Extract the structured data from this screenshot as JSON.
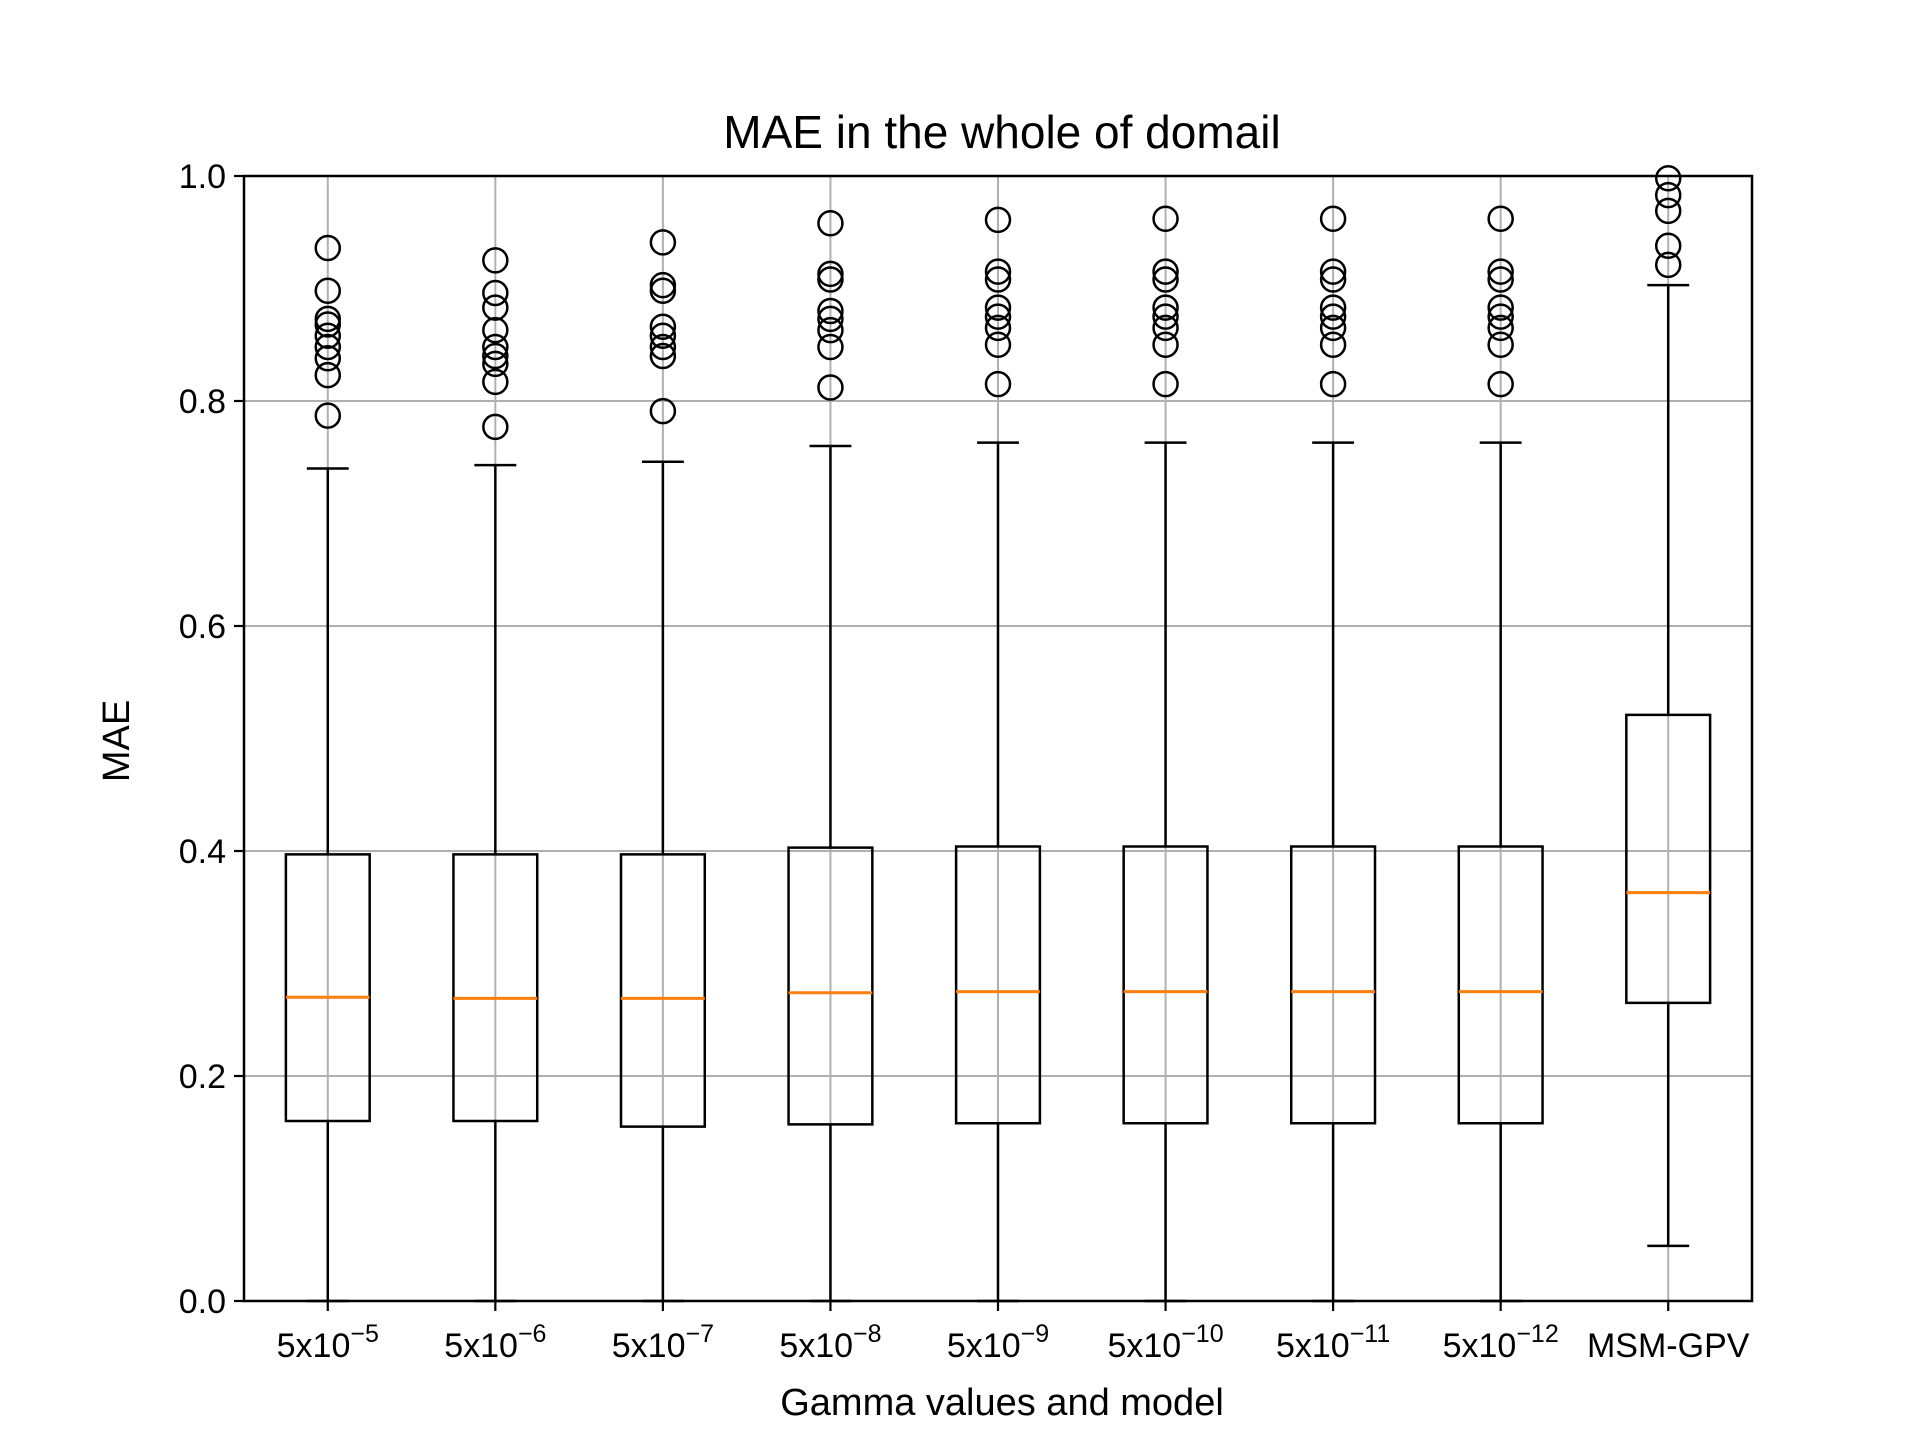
{
  "chart_data": {
    "type": "boxplot",
    "title": "MAE in the whole of domail",
    "xlabel": "Gamma values and model",
    "ylabel": "MAE",
    "ylim": [
      0.0,
      1.0
    ],
    "yticks": [
      "0.0",
      "0.2",
      "0.4",
      "0.6",
      "0.8",
      "1.0"
    ],
    "grid": true,
    "categories": [
      {
        "base": "5x10",
        "exp": "−5"
      },
      {
        "base": "5x10",
        "exp": "−6"
      },
      {
        "base": "5x10",
        "exp": "−7"
      },
      {
        "base": "5x10",
        "exp": "−8"
      },
      {
        "base": "5x10",
        "exp": "−9"
      },
      {
        "base": "5x10",
        "exp": "−10"
      },
      {
        "base": "5x10",
        "exp": "−11"
      },
      {
        "base": "5x10",
        "exp": "−12"
      },
      {
        "base": "MSM-GPV",
        "exp": ""
      }
    ],
    "boxes": [
      {
        "whislo": 0.0,
        "q1": 0.16,
        "med": 0.27,
        "q3": 0.397,
        "whishi": 0.74,
        "fliers": [
          0.787,
          0.823,
          0.838,
          0.848,
          0.858,
          0.868,
          0.873,
          0.898,
          0.936
        ]
      },
      {
        "whislo": 0.0,
        "q1": 0.16,
        "med": 0.269,
        "q3": 0.397,
        "whishi": 0.743,
        "fliers": [
          0.777,
          0.817,
          0.833,
          0.84,
          0.848,
          0.863,
          0.883,
          0.896,
          0.925
        ]
      },
      {
        "whislo": 0.0,
        "q1": 0.155,
        "med": 0.269,
        "q3": 0.397,
        "whishi": 0.746,
        "fliers": [
          0.791,
          0.84,
          0.848,
          0.858,
          0.866,
          0.898,
          0.903,
          0.941
        ]
      },
      {
        "whislo": 0.0,
        "q1": 0.157,
        "med": 0.274,
        "q3": 0.403,
        "whishi": 0.76,
        "fliers": [
          0.812,
          0.848,
          0.863,
          0.873,
          0.88,
          0.908,
          0.913,
          0.958
        ]
      },
      {
        "whislo": 0.0,
        "q1": 0.158,
        "med": 0.275,
        "q3": 0.404,
        "whishi": 0.763,
        "fliers": [
          0.815,
          0.85,
          0.865,
          0.875,
          0.883,
          0.908,
          0.915,
          0.961
        ]
      },
      {
        "whislo": 0.0,
        "q1": 0.158,
        "med": 0.275,
        "q3": 0.404,
        "whishi": 0.763,
        "fliers": [
          0.815,
          0.85,
          0.865,
          0.875,
          0.883,
          0.908,
          0.915,
          0.962
        ]
      },
      {
        "whislo": 0.0,
        "q1": 0.158,
        "med": 0.275,
        "q3": 0.404,
        "whishi": 0.763,
        "fliers": [
          0.815,
          0.85,
          0.865,
          0.875,
          0.883,
          0.908,
          0.915,
          0.962
        ]
      },
      {
        "whislo": 0.0,
        "q1": 0.158,
        "med": 0.275,
        "q3": 0.404,
        "whishi": 0.763,
        "fliers": [
          0.815,
          0.85,
          0.865,
          0.875,
          0.883,
          0.908,
          0.915,
          0.962
        ]
      },
      {
        "whislo": 0.049,
        "q1": 0.265,
        "med": 0.363,
        "q3": 0.521,
        "whishi": 0.903,
        "fliers": [
          0.921,
          0.938,
          0.969,
          0.983,
          0.998
        ]
      }
    ],
    "colors": {
      "box": "#000000",
      "median": "#ff7f0e",
      "grid": "#b0b0b0",
      "background": "#ffffff"
    }
  }
}
